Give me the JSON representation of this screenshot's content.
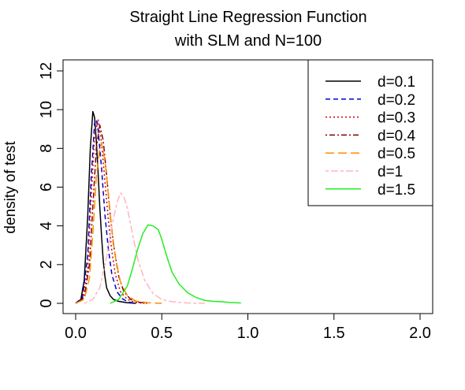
{
  "chart_data": {
    "type": "line",
    "title": "Straight Line Regression Function",
    "subtitle": "with SLM and N=100",
    "xlabel": "",
    "ylabel": "density of test",
    "xlim": [
      0,
      2
    ],
    "ylim": [
      0,
      12
    ],
    "x_ticks": [
      0.0,
      0.5,
      1.0,
      1.5,
      2.0
    ],
    "x_tick_labels": [
      "0.0",
      "0.5",
      "1.0",
      "1.5",
      "2.0"
    ],
    "y_ticks": [
      0,
      2,
      4,
      6,
      8,
      10,
      12
    ],
    "y_tick_labels": [
      "0",
      "2",
      "4",
      "6",
      "8",
      "10",
      "12"
    ],
    "grid": false,
    "legend_position": "top-right",
    "series": [
      {
        "name": "d=0.1",
        "color": "#000000",
        "dash": "solid",
        "x": [
          0.0,
          0.03,
          0.05,
          0.07,
          0.085,
          0.1,
          0.11,
          0.12,
          0.13,
          0.14,
          0.15,
          0.16,
          0.17,
          0.18,
          0.2,
          0.22,
          0.25,
          0.3,
          0.35
        ],
        "y": [
          0.0,
          0.2,
          1.2,
          4.5,
          8.0,
          9.9,
          9.6,
          8.4,
          6.8,
          5.0,
          3.5,
          2.2,
          1.4,
          0.8,
          0.4,
          0.2,
          0.1,
          0.03,
          0.0
        ]
      },
      {
        "name": "d=0.2",
        "color": "#0000cc",
        "dash": "dashed",
        "x": [
          0.0,
          0.04,
          0.07,
          0.09,
          0.11,
          0.12,
          0.13,
          0.15,
          0.17,
          0.19,
          0.21,
          0.24,
          0.27,
          0.3,
          0.35
        ],
        "y": [
          0.0,
          0.3,
          2.5,
          6.5,
          9.3,
          9.5,
          9.0,
          7.0,
          4.6,
          2.8,
          1.5,
          0.6,
          0.25,
          0.08,
          0.0
        ]
      },
      {
        "name": "d=0.3",
        "color": "#cc0000",
        "dash": "dotted",
        "x": [
          0.0,
          0.04,
          0.07,
          0.09,
          0.11,
          0.13,
          0.15,
          0.17,
          0.19,
          0.21,
          0.23,
          0.26,
          0.3,
          0.35,
          0.4
        ],
        "y": [
          0.0,
          0.2,
          1.8,
          5.5,
          8.6,
          9.5,
          8.3,
          6.3,
          4.3,
          2.7,
          1.5,
          0.6,
          0.2,
          0.05,
          0.0
        ]
      },
      {
        "name": "d=0.4",
        "color": "#800000",
        "dash": "dotdash",
        "x": [
          0.0,
          0.05,
          0.08,
          0.1,
          0.12,
          0.14,
          0.16,
          0.18,
          0.2,
          0.22,
          0.25,
          0.28,
          0.32,
          0.37,
          0.42
        ],
        "y": [
          0.0,
          0.3,
          2.0,
          5.0,
          8.0,
          9.2,
          8.4,
          6.6,
          4.6,
          3.0,
          1.4,
          0.6,
          0.2,
          0.05,
          0.0
        ]
      },
      {
        "name": "d=0.5",
        "color": "#ff8c00",
        "dash": "longdash",
        "x": [
          0.0,
          0.05,
          0.08,
          0.1,
          0.12,
          0.14,
          0.15,
          0.17,
          0.19,
          0.21,
          0.23,
          0.26,
          0.3,
          0.35,
          0.42,
          0.5
        ],
        "y": [
          0.0,
          0.2,
          1.3,
          3.6,
          6.5,
          8.0,
          8.3,
          7.4,
          5.6,
          3.8,
          2.4,
          1.1,
          0.4,
          0.12,
          0.03,
          0.0
        ]
      },
      {
        "name": "d=1",
        "color": "#ffb6c1",
        "dash": "twodash",
        "x": [
          0.05,
          0.1,
          0.14,
          0.18,
          0.21,
          0.24,
          0.26,
          0.28,
          0.3,
          0.33,
          0.36,
          0.4,
          0.45,
          0.5,
          0.55,
          0.6,
          0.65,
          0.7,
          0.75
        ],
        "y": [
          0.0,
          0.2,
          0.8,
          2.4,
          4.0,
          5.2,
          5.7,
          5.5,
          4.9,
          3.6,
          2.3,
          1.2,
          0.5,
          0.2,
          0.1,
          0.05,
          0.02,
          0.01,
          0.0
        ]
      },
      {
        "name": "d=1.5",
        "color": "#22ee22",
        "dash": "solid",
        "x": [
          0.2,
          0.25,
          0.3,
          0.33,
          0.36,
          0.39,
          0.42,
          0.45,
          0.48,
          0.5,
          0.53,
          0.56,
          0.6,
          0.65,
          0.7,
          0.75,
          0.8,
          0.85,
          0.9,
          0.96
        ],
        "y": [
          0.0,
          0.2,
          0.9,
          1.8,
          2.8,
          3.6,
          4.05,
          4.0,
          3.8,
          3.3,
          2.4,
          1.6,
          1.0,
          0.55,
          0.3,
          0.15,
          0.1,
          0.08,
          0.04,
          0.02
        ]
      }
    ]
  }
}
